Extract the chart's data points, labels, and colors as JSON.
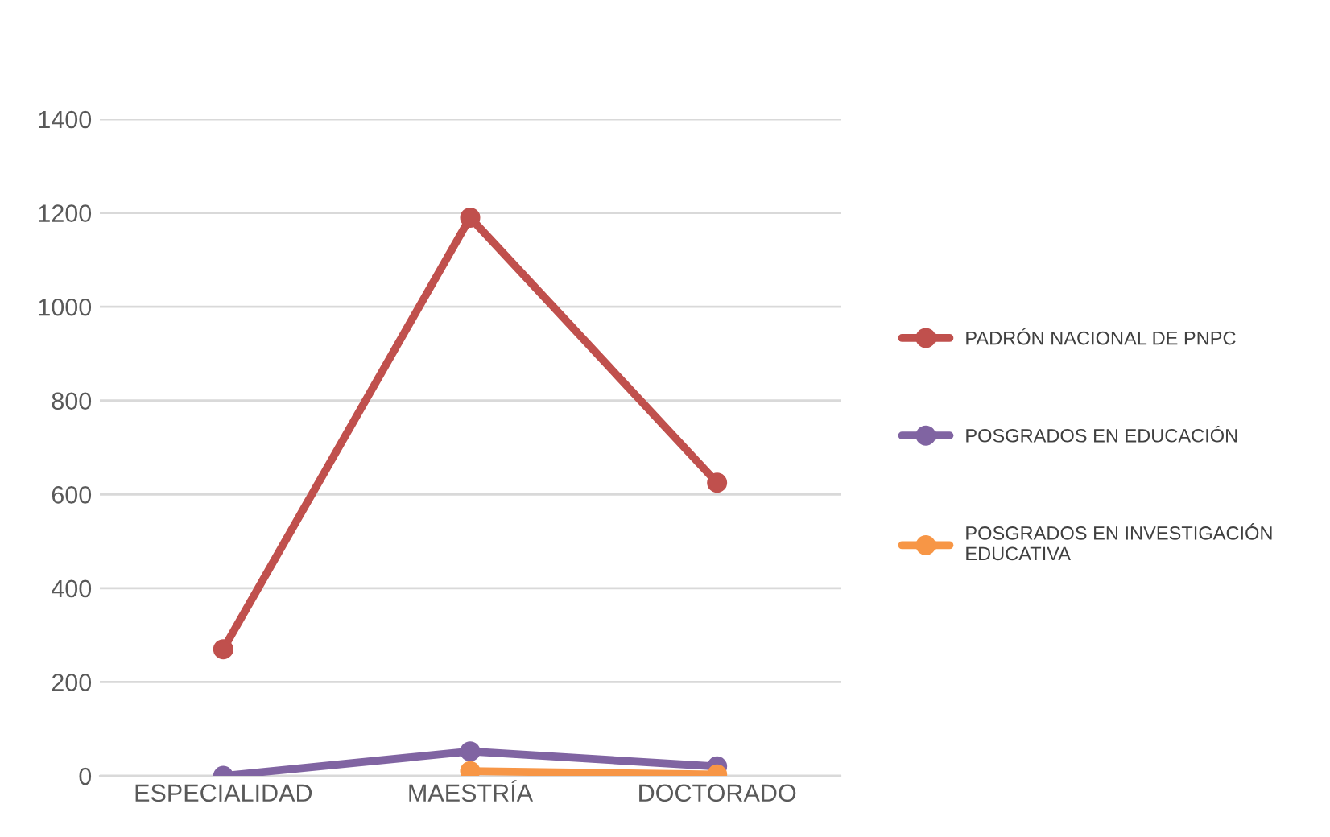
{
  "chart_data": {
    "type": "line",
    "categories": [
      "ESPECIALIDAD",
      "MAESTRÍA",
      "DOCTORADO"
    ],
    "series": [
      {
        "name": "PADRÓN NACIONAL DE PNPC",
        "color": "#c0504d",
        "values": [
          270,
          1190,
          625
        ]
      },
      {
        "name": "POSGRADOS EN EDUCACIÓN",
        "color": "#8064a2",
        "values": [
          0,
          52,
          20
        ]
      },
      {
        "name": "POSGRADOS EN INVESTIGACIÓN\nEDUCATIVA",
        "color": "#f79646",
        "values": [
          null,
          10,
          3
        ]
      }
    ],
    "ylim": [
      0,
      1400
    ],
    "yticks": [
      0,
      200,
      400,
      600,
      800,
      1000,
      1200,
      1400
    ],
    "grid": "y",
    "legend": "right",
    "marker": "circle",
    "line_style": "solid"
  }
}
